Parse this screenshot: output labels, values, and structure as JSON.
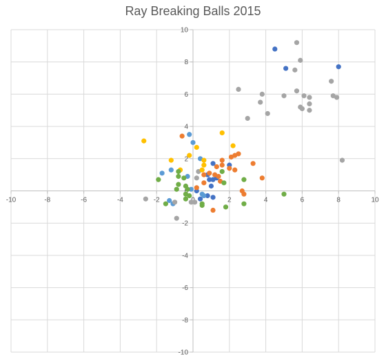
{
  "chart_data": {
    "type": "scatter",
    "title": "Ray Breaking Balls 2015",
    "xlim": [
      -10,
      10
    ],
    "ylim": [
      -10,
      10
    ],
    "x_ticks": [
      -10,
      -8,
      -6,
      -4,
      -2,
      0,
      2,
      4,
      6,
      8,
      10
    ],
    "y_ticks": [
      -10,
      -8,
      -6,
      -4,
      -2,
      0,
      2,
      4,
      6,
      8,
      10
    ],
    "grid": true,
    "legend": "none",
    "series": [
      {
        "color": "#4472c4",
        "points": [
          [
            4.5,
            8.8
          ],
          [
            5.1,
            7.6
          ],
          [
            8.0,
            7.7
          ],
          [
            0.8,
            1.0
          ],
          [
            1.1,
            1.7
          ],
          [
            2.0,
            1.6
          ],
          [
            0.9,
            0.7
          ],
          [
            1.1,
            0.7
          ],
          [
            1.3,
            0.8
          ],
          [
            1.0,
            0.3
          ],
          [
            0.8,
            -0.3
          ],
          [
            1.1,
            -0.4
          ],
          [
            0.2,
            0.0
          ],
          [
            0.4,
            -0.5
          ]
        ]
      },
      {
        "color": "#5b9bd5",
        "points": [
          [
            -0.2,
            3.5
          ],
          [
            0.0,
            3.0
          ],
          [
            0.4,
            2.0
          ],
          [
            -1.2,
            1.3
          ],
          [
            -1.7,
            1.1
          ],
          [
            -0.3,
            0.9
          ],
          [
            -0.1,
            0.1
          ],
          [
            0.6,
            -0.3
          ],
          [
            -1.1,
            -0.8
          ],
          [
            -1.3,
            -0.6
          ],
          [
            0.5,
            -0.2
          ]
        ]
      },
      {
        "color": "#ed7d31",
        "points": [
          [
            -0.6,
            3.4
          ],
          [
            1.6,
            1.9
          ],
          [
            1.6,
            1.6
          ],
          [
            1.3,
            1.5
          ],
          [
            2.0,
            1.4
          ],
          [
            2.3,
            1.3
          ],
          [
            2.1,
            2.1
          ],
          [
            2.5,
            2.3
          ],
          [
            2.3,
            2.2
          ],
          [
            3.3,
            1.7
          ],
          [
            3.8,
            0.8
          ],
          [
            1.2,
            1.0
          ],
          [
            1.4,
            0.9
          ],
          [
            0.6,
            1.0
          ],
          [
            0.6,
            0.5
          ],
          [
            0.2,
            0.2
          ],
          [
            1.5,
            0.6
          ],
          [
            2.7,
            0.0
          ],
          [
            2.8,
            -0.2
          ],
          [
            1.1,
            -1.2
          ],
          [
            0.9,
            1.1
          ]
        ]
      },
      {
        "color": "#a5a5a5",
        "points": [
          [
            5.7,
            9.2
          ],
          [
            5.9,
            8.1
          ],
          [
            5.6,
            7.5
          ],
          [
            7.6,
            6.8
          ],
          [
            2.5,
            6.3
          ],
          [
            3.8,
            6.0
          ],
          [
            5.0,
            5.9
          ],
          [
            5.7,
            6.2
          ],
          [
            6.1,
            5.9
          ],
          [
            6.4,
            5.8
          ],
          [
            7.9,
            5.8
          ],
          [
            7.7,
            5.9
          ],
          [
            3.7,
            5.5
          ],
          [
            6.4,
            5.4
          ],
          [
            5.9,
            5.2
          ],
          [
            6.0,
            5.1
          ],
          [
            6.4,
            5.0
          ],
          [
            4.1,
            4.8
          ],
          [
            3.0,
            4.5
          ],
          [
            8.2,
            1.9
          ],
          [
            0.3,
            1.2
          ],
          [
            0.2,
            0.8
          ],
          [
            -2.6,
            -0.5
          ],
          [
            -0.1,
            -0.7
          ],
          [
            0.1,
            -0.7
          ],
          [
            -0.9,
            -1.7
          ],
          [
            -1.0,
            -0.7
          ]
        ]
      },
      {
        "color": "#ffc000",
        "points": [
          [
            -2.7,
            3.1
          ],
          [
            1.6,
            3.6
          ],
          [
            0.2,
            2.7
          ],
          [
            2.2,
            2.8
          ],
          [
            -0.2,
            2.2
          ],
          [
            -1.2,
            1.9
          ],
          [
            0.6,
            1.9
          ],
          [
            0.6,
            1.6
          ],
          [
            -0.7,
            1.3
          ],
          [
            0.5,
            1.3
          ]
        ]
      },
      {
        "color": "#70ad47",
        "points": [
          [
            -1.9,
            0.7
          ],
          [
            -0.8,
            1.2
          ],
          [
            -0.8,
            0.9
          ],
          [
            -0.8,
            0.4
          ],
          [
            -0.4,
            0.3
          ],
          [
            -0.3,
            0.1
          ],
          [
            -0.4,
            -0.2
          ],
          [
            -0.4,
            -0.5
          ],
          [
            -0.2,
            -0.3
          ],
          [
            0.5,
            -0.8
          ],
          [
            0.5,
            -0.9
          ],
          [
            -0.9,
            0.1
          ],
          [
            -1.5,
            -0.8
          ],
          [
            1.7,
            0.5
          ],
          [
            1.6,
            1.2
          ],
          [
            2.8,
            0.7
          ],
          [
            2.8,
            -0.8
          ],
          [
            5.0,
            -0.2
          ],
          [
            1.8,
            -1.0
          ],
          [
            -0.5,
            0.8
          ]
        ]
      }
    ]
  }
}
